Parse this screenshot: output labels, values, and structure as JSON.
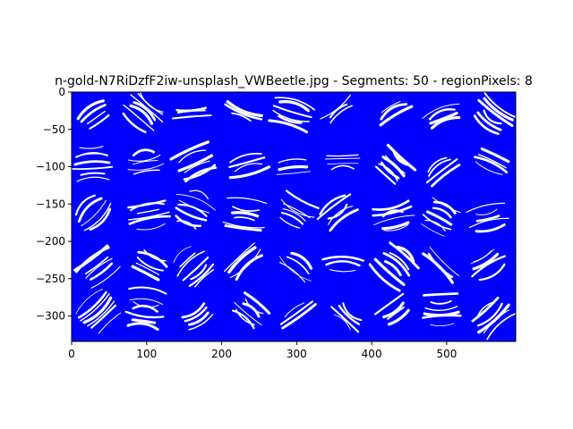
{
  "chart_data": {
    "type": "line",
    "title": "n-gold-N7RiDzfF2iw-unsplash_VWBeetle.jpg - Segments: 50 - regionPixels: 8",
    "xlabel": "",
    "ylabel": "",
    "xlim": [
      0,
      592
    ],
    "ylim": [
      -334,
      0
    ],
    "x_ticks": [
      0,
      100,
      200,
      300,
      400,
      500
    ],
    "y_ticks": [
      0,
      -50,
      -100,
      -150,
      -200,
      -250,
      -300
    ],
    "grid": false,
    "legend": "none",
    "line_color": "#0000ff",
    "description_of_marks": "dense blue streamline strokes filling the plot area"
  }
}
